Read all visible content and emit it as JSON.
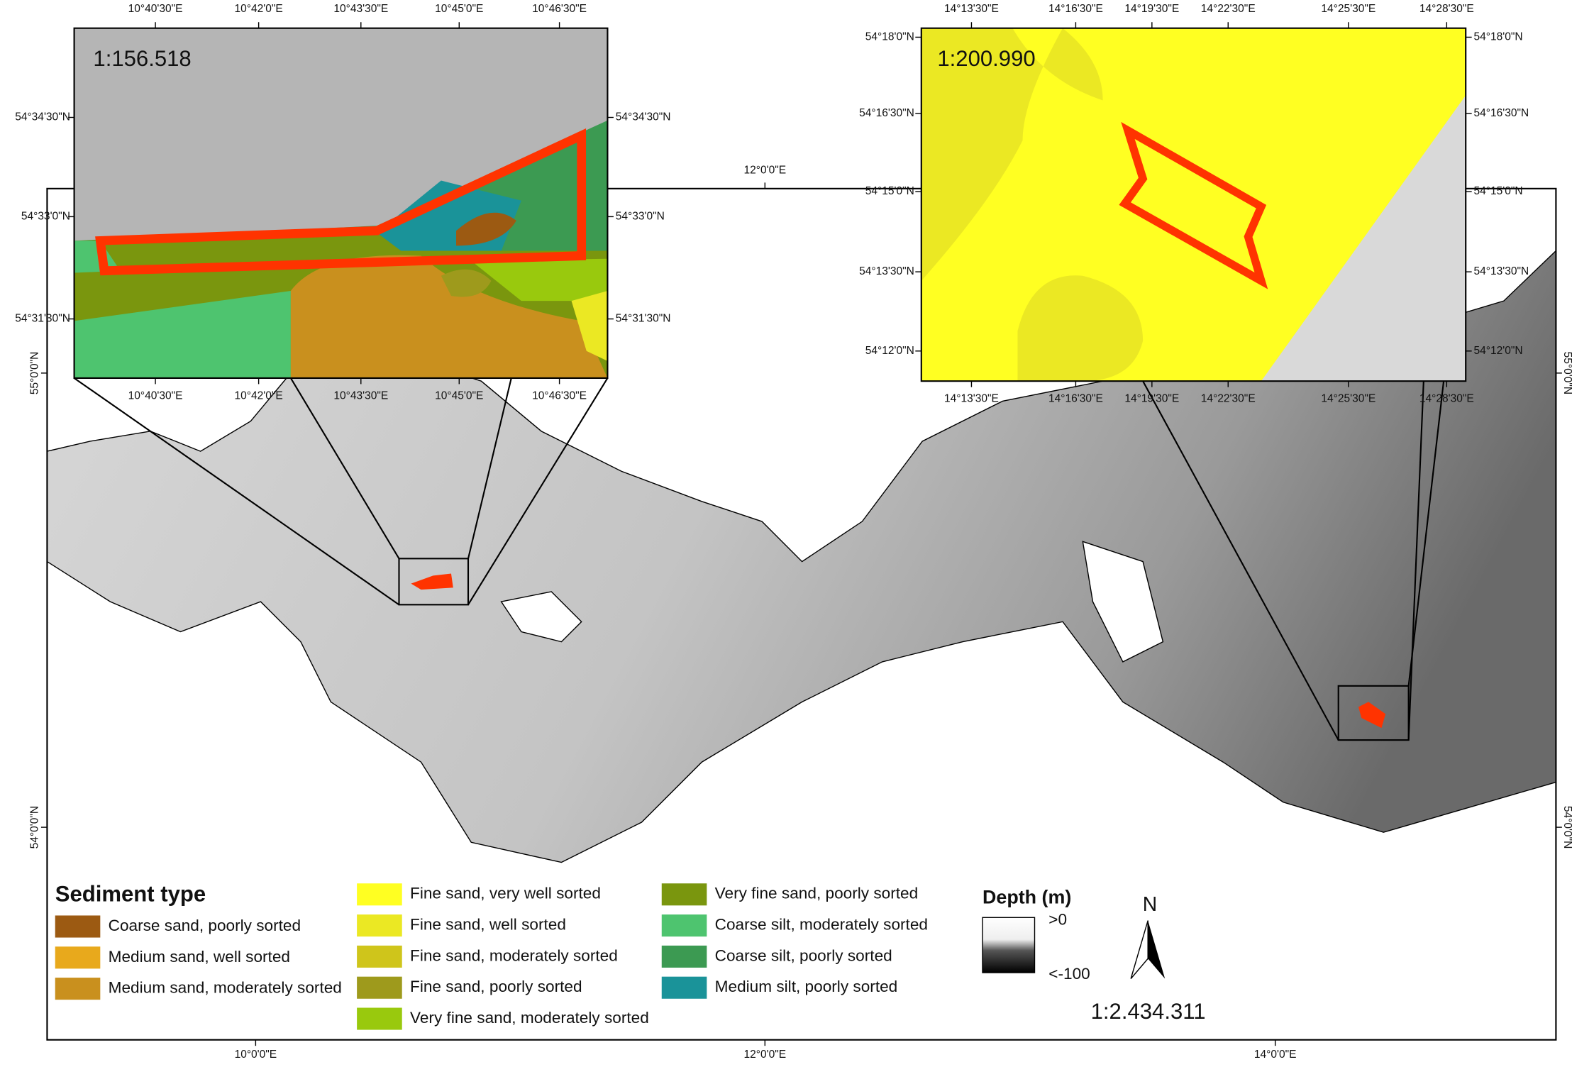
{
  "main_map": {
    "scale": "1:2.434.311",
    "top_labels": [
      "12°0'0\"E"
    ],
    "bottom_labels": [
      "10°0'0\"E",
      "12°0'0\"E",
      "14°0'0\"E"
    ],
    "left_labels": [
      "55°0'0\"N",
      "54°0'0\"N"
    ],
    "right_labels": [
      "55°0'0\"N",
      "54°0'0\"N"
    ]
  },
  "inset_left": {
    "scale": "1:156.518",
    "top_labels": [
      "10°40'30\"E",
      "10°42'0\"E",
      "10°43'30\"E",
      "10°45'0\"E",
      "10°46'30\"E"
    ],
    "bottom_labels": [
      "10°40'30\"E",
      "10°42'0\"E",
      "10°43'30\"E",
      "10°45'0\"E",
      "10°46'30\"E"
    ],
    "left_labels": [
      "54°34'30\"N",
      "54°33'0\"N",
      "54°31'30\"N"
    ],
    "right_labels": [
      "54°34'30\"N",
      "54°33'0\"N",
      "54°31'30\"N"
    ]
  },
  "inset_right": {
    "scale": "1:200.990",
    "top_labels": [
      "14°13'30\"E",
      "14°16'30\"E",
      "14°19'30\"E",
      "14°22'30\"E",
      "14°25'30\"E",
      "14°28'30\"E"
    ],
    "bottom_labels": [
      "14°13'30\"E",
      "14°16'30\"E",
      "14°19'30\"E",
      "14°22'30\"E",
      "14°25'30\"E",
      "14°28'30\"E"
    ],
    "left_labels": [
      "54°18'0\"N",
      "54°16'30\"N",
      "54°15'0\"N",
      "54°13'30\"N",
      "54°12'0\"N"
    ],
    "right_labels": [
      "54°18'0\"N",
      "54°16'30\"N",
      "54°15'0\"N",
      "54°13'30\"N",
      "54°12'0\"N"
    ]
  },
  "legend": {
    "title": "Sediment type",
    "items": [
      {
        "label": "Coarse sand, poorly sorted",
        "color": "#9c5a12"
      },
      {
        "label": "Medium sand, well sorted",
        "color": "#e8a91c"
      },
      {
        "label": "Medium sand, moderately sorted",
        "color": "#c9901e"
      },
      {
        "label": "Fine sand, very well sorted",
        "color": "#ffff22"
      },
      {
        "label": "Fine sand, well sorted",
        "color": "#ebe823"
      },
      {
        "label": "Fine sand, moderately sorted",
        "color": "#cfc51b"
      },
      {
        "label": "Fine sand, poorly sorted",
        "color": "#9e9a1c"
      },
      {
        "label": "Very fine sand, moderately sorted",
        "color": "#99c90d"
      },
      {
        "label": "Very fine sand, poorly sorted",
        "color": "#7a960e"
      },
      {
        "label": "Coarse silt, moderately sorted",
        "color": "#4ec46f"
      },
      {
        "label": "Coarse silt, poorly sorted",
        "color": "#3c9a52"
      },
      {
        "label": "Medium silt, poorly sorted",
        "color": "#1a9399"
      }
    ]
  },
  "depth_legend": {
    "title": "Depth (m)",
    "max_label": ">0",
    "min_label": "<-100"
  },
  "north_arrow": {
    "label": "N"
  }
}
